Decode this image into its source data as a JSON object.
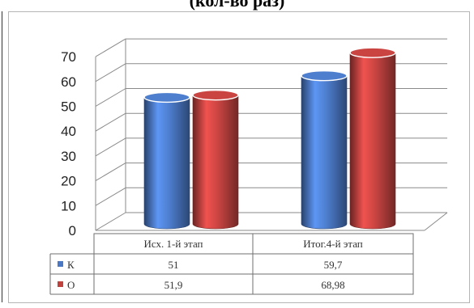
{
  "title": "(кол-во раз)",
  "chart_data": {
    "type": "bar",
    "categories": [
      "Исх. 1-й этап",
      "Итог.4-й этап"
    ],
    "series": [
      {
        "name": "К",
        "values": [
          51,
          59.7
        ],
        "labels": [
          "51",
          "59,7"
        ],
        "color": "#4a78c4"
      },
      {
        "name": "О",
        "values": [
          51.9,
          68.98
        ],
        "labels": [
          "51,9",
          "68,98"
        ],
        "color": "#c0423f"
      }
    ],
    "ylim": [
      0,
      70
    ],
    "yticks": [
      "0",
      "10",
      "20",
      "30",
      "40",
      "50",
      "60",
      "70"
    ],
    "grid": true,
    "three_d": true,
    "legend": "data-table"
  }
}
